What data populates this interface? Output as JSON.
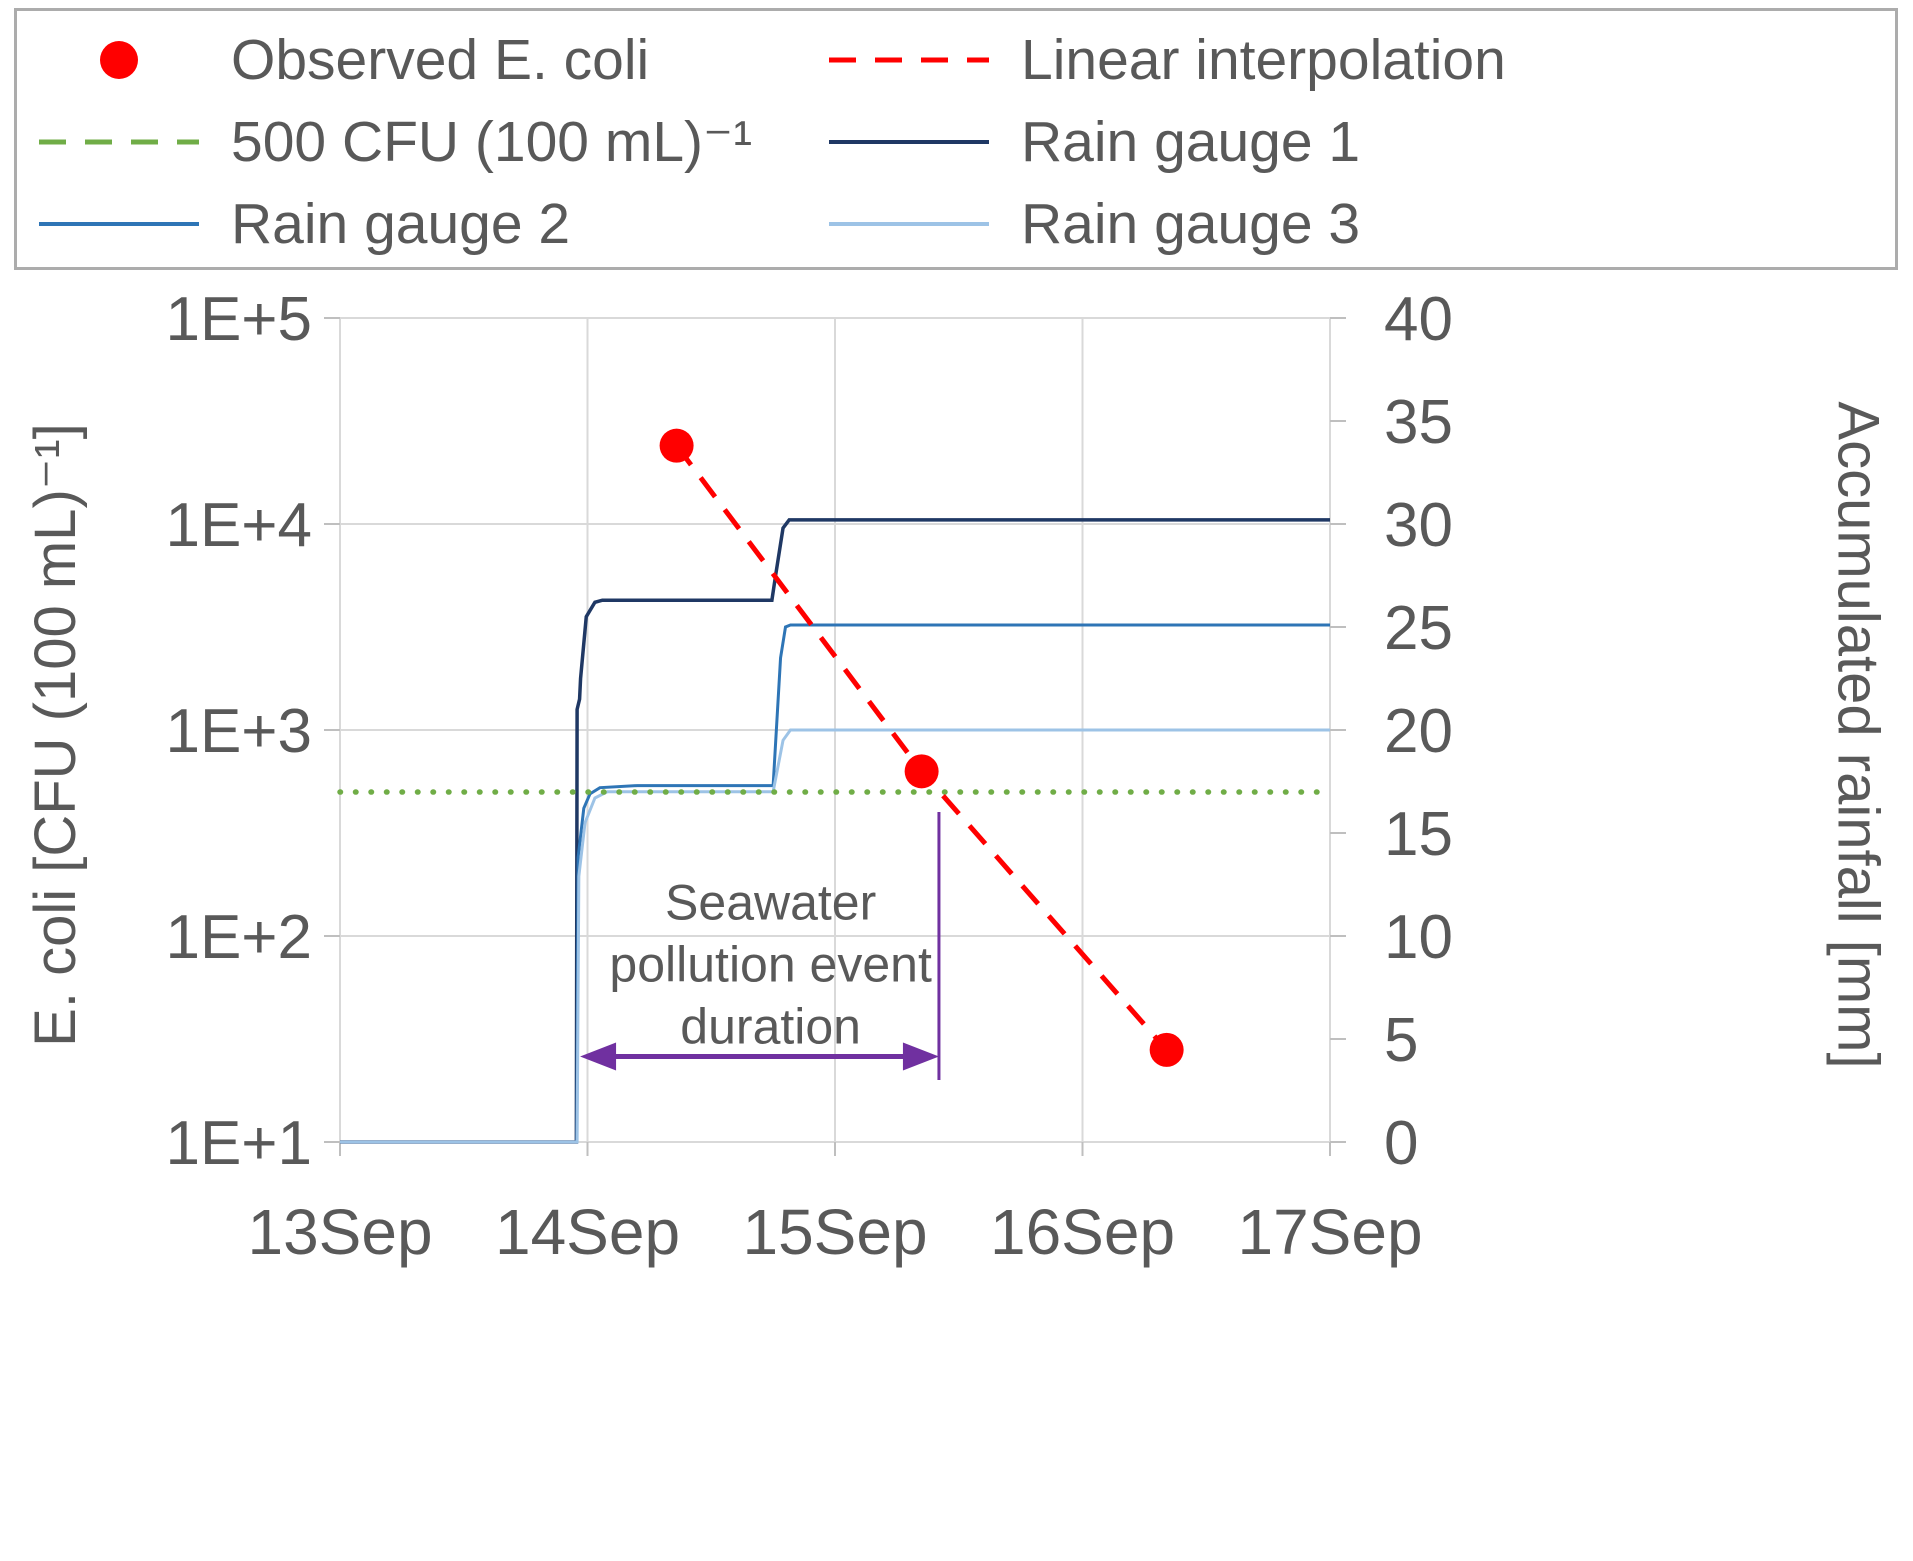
{
  "legend": {
    "items": [
      {
        "label": "Observed E. coli",
        "marker": "dot",
        "style": "solid",
        "color": "#FF0000"
      },
      {
        "label": "Linear interpolation",
        "marker": "line",
        "style": "dashed",
        "color": "#FF0000"
      },
      {
        "label": "500 CFU (100 mL)⁻¹",
        "marker": "line",
        "style": "dashed",
        "color": "#70AD47"
      },
      {
        "label": "Rain gauge 1",
        "marker": "line",
        "style": "solid",
        "color": "#1F3864"
      },
      {
        "label": "Rain gauge 2",
        "marker": "line",
        "style": "solid",
        "color": "#2E75B6"
      },
      {
        "label": "Rain gauge 3",
        "marker": "line",
        "style": "solid",
        "color": "#9DC3E6"
      }
    ]
  },
  "chart_data": {
    "type": "line",
    "x_axis": {
      "tick_labels": [
        "13Sep",
        "14Sep",
        "15Sep",
        "16Sep",
        "17Sep"
      ],
      "tick_days": [
        0,
        1,
        2,
        3,
        4
      ],
      "unit": "date"
    },
    "y_left_axis": {
      "title": "E. coli [CFU (100 mL)⁻¹]",
      "scale": "log",
      "range": [
        10,
        100000
      ],
      "ticks": [
        {
          "label": "1E+5",
          "value": 100000
        },
        {
          "label": "1E+4",
          "value": 10000
        },
        {
          "label": "1E+3",
          "value": 1000
        },
        {
          "label": "1E+2",
          "value": 100
        },
        {
          "label": "1E+1",
          "value": 10
        }
      ]
    },
    "y_right_axis": {
      "title": "Accumulated rainfall [mm]",
      "scale": "linear",
      "range": [
        0,
        40
      ],
      "ticks": [
        40,
        35,
        30,
        25,
        20,
        15,
        10,
        5,
        0
      ]
    },
    "series": [
      {
        "name": "Rain gauge 1",
        "axis": "right",
        "type": "line",
        "style": "solid",
        "color": "#1F3864",
        "width": 3.5,
        "points": [
          [
            0,
            0
          ],
          [
            0.955,
            0
          ],
          [
            0.958,
            21
          ],
          [
            0.968,
            21.5
          ],
          [
            0.972,
            22.5
          ],
          [
            0.995,
            25.5
          ],
          [
            1.03,
            26.2
          ],
          [
            1.06,
            26.3
          ],
          [
            1.745,
            26.3
          ],
          [
            1.76,
            27.5
          ],
          [
            1.79,
            29.8
          ],
          [
            1.815,
            30.2
          ],
          [
            4,
            30.2
          ]
        ]
      },
      {
        "name": "Rain gauge 2",
        "axis": "right",
        "type": "line",
        "style": "solid",
        "color": "#2E75B6",
        "width": 3,
        "points": [
          [
            0,
            0
          ],
          [
            0.957,
            0
          ],
          [
            0.962,
            13.8
          ],
          [
            0.985,
            16.2
          ],
          [
            1.01,
            16.9
          ],
          [
            1.05,
            17.2
          ],
          [
            1.2,
            17.3
          ],
          [
            1.75,
            17.3
          ],
          [
            1.78,
            23.5
          ],
          [
            1.8,
            25.0
          ],
          [
            1.82,
            25.1
          ],
          [
            4,
            25.1
          ]
        ]
      },
      {
        "name": "Rain gauge 3",
        "axis": "right",
        "type": "line",
        "style": "solid",
        "color": "#9DC3E6",
        "width": 3,
        "points": [
          [
            0,
            0
          ],
          [
            0.958,
            0
          ],
          [
            0.965,
            12.9
          ],
          [
            0.99,
            15.5
          ],
          [
            1.03,
            16.7
          ],
          [
            1.08,
            17.0
          ],
          [
            1.75,
            17.0
          ],
          [
            1.79,
            19.5
          ],
          [
            1.82,
            20.0
          ],
          [
            4,
            20.0
          ]
        ]
      },
      {
        "name": "500 CFU (100 mL)⁻¹",
        "axis": "left",
        "type": "line",
        "style": "dotted",
        "color": "#70AD47",
        "width": 5.5,
        "points": [
          [
            0,
            500
          ],
          [
            4,
            500
          ]
        ]
      },
      {
        "name": "Linear interpolation",
        "axis": "left",
        "type": "line",
        "style": "dashed",
        "color": "#FF0000",
        "width": 5,
        "points": [
          [
            1.36,
            24000
          ],
          [
            2.35,
            630
          ],
          [
            3.34,
            28
          ]
        ]
      },
      {
        "name": "Observed E. coli",
        "axis": "left",
        "type": "scatter",
        "color": "#FF0000",
        "marker_radius": 17,
        "points": [
          [
            1.36,
            24000
          ],
          [
            2.35,
            630
          ],
          [
            3.34,
            28
          ]
        ]
      }
    ],
    "annotation": {
      "lines": [
        "Seawater",
        "pollution event",
        "duration"
      ],
      "color": "#7030A0",
      "text_x_day": 1.74,
      "text_first_line_cfu": 120,
      "arrow": {
        "x_start_day": 0.97,
        "x_end_day": 2.42,
        "y_cfu": 26
      },
      "vline": {
        "x_day": 2.42,
        "y_cfu_from": 400,
        "y_cfu_to": 20
      }
    },
    "colors": {
      "grid": "#D9D9D9",
      "axis_text": "#595959",
      "tick": "#BFBFBF"
    }
  }
}
